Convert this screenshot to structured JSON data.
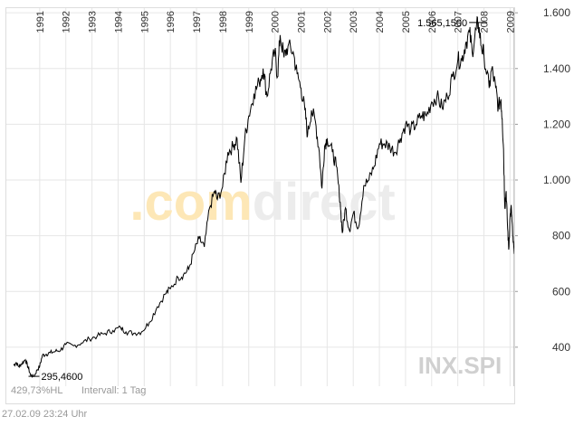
{
  "chart_data": {
    "type": "line",
    "ticker": "INX.SPI",
    "watermark": ".comdirect",
    "colors": {
      "line": "#000000",
      "grid": "#e6e6e6",
      "axis_text": "#333333",
      "watermark_orange": "#fde7b6",
      "watermark_gray": "#ececec",
      "ticker_text": "#d0d0d0",
      "footer_text": "#999999"
    },
    "grid": true,
    "x_axis": {
      "position": "top",
      "labels_rotated": true
    },
    "y_axis": {
      "position": "right",
      "ylim": [
        260,
        1620
      ],
      "ticks": [
        400,
        600,
        800,
        1000,
        1200,
        1400,
        1600
      ],
      "tick_labels": [
        "400",
        "600",
        "800",
        "1.000",
        "1.200",
        "1.400",
        "1.600"
      ]
    },
    "xlim": [
      1990.0,
      2009.16
    ],
    "year_ticks": [
      1991,
      1992,
      1993,
      1994,
      1995,
      1996,
      1997,
      1998,
      1999,
      2000,
      2001,
      2002,
      2003,
      2004,
      2005,
      2006,
      2007,
      2008,
      2009
    ],
    "year_labels": [
      "1991",
      "1992",
      "1993",
      "1994",
      "1995",
      "1996",
      "1997",
      "1998",
      "1999",
      "2000",
      "2001",
      "2002",
      "2003",
      "2004",
      "2005",
      "2006",
      "2007",
      "2008",
      "2009"
    ],
    "annotations": {
      "high_label": "1.565,1500",
      "high_x": 2007.78,
      "high_y": 1565.15,
      "low_label": "295,4600",
      "low_x": 1990.78,
      "low_y": 295.46
    },
    "stats": {
      "range_pct": "429,73%HL",
      "interval": "Intervall: 1 Tag"
    },
    "timestamp": "27.02.09   23:24 Uhr",
    "series": [
      {
        "points": [
          [
            1990.0,
            335
          ],
          [
            1990.1,
            345
          ],
          [
            1990.2,
            330
          ],
          [
            1990.3,
            340
          ],
          [
            1990.45,
            355
          ],
          [
            1990.55,
            330
          ],
          [
            1990.65,
            300
          ],
          [
            1990.78,
            295
          ],
          [
            1990.9,
            318
          ],
          [
            1991.0,
            332
          ],
          [
            1991.1,
            370
          ],
          [
            1991.25,
            375
          ],
          [
            1991.4,
            380
          ],
          [
            1991.6,
            385
          ],
          [
            1991.8,
            390
          ],
          [
            1992.0,
            410
          ],
          [
            1992.3,
            405
          ],
          [
            1992.6,
            415
          ],
          [
            1992.9,
            430
          ],
          [
            1993.2,
            440
          ],
          [
            1993.5,
            450
          ],
          [
            1993.8,
            460
          ],
          [
            1994.1,
            470
          ],
          [
            1994.3,
            455
          ],
          [
            1994.6,
            450
          ],
          [
            1994.9,
            455
          ],
          [
            1995.2,
            490
          ],
          [
            1995.5,
            545
          ],
          [
            1995.8,
            590
          ],
          [
            1996.0,
            610
          ],
          [
            1996.3,
            650
          ],
          [
            1996.5,
            660
          ],
          [
            1996.7,
            680
          ],
          [
            1996.9,
            740
          ],
          [
            1997.1,
            790
          ],
          [
            1997.3,
            760
          ],
          [
            1997.5,
            900
          ],
          [
            1997.7,
            960
          ],
          [
            1997.8,
            930
          ],
          [
            1998.0,
            975
          ],
          [
            1998.2,
            1100
          ],
          [
            1998.4,
            1120
          ],
          [
            1998.55,
            1150
          ],
          [
            1998.7,
            990
          ],
          [
            1998.85,
            1150
          ],
          [
            1999.0,
            1230
          ],
          [
            1999.2,
            1310
          ],
          [
            1999.4,
            1350
          ],
          [
            1999.55,
            1400
          ],
          [
            1999.7,
            1300
          ],
          [
            1999.85,
            1400
          ],
          [
            2000.0,
            1460
          ],
          [
            2000.1,
            1370
          ],
          [
            2000.2,
            1520
          ],
          [
            2000.35,
            1440
          ],
          [
            2000.5,
            1480
          ],
          [
            2000.7,
            1460
          ],
          [
            2000.85,
            1380
          ],
          [
            2001.0,
            1330
          ],
          [
            2001.15,
            1250
          ],
          [
            2001.25,
            1160
          ],
          [
            2001.4,
            1250
          ],
          [
            2001.55,
            1210
          ],
          [
            2001.7,
            1100
          ],
          [
            2001.8,
            970
          ],
          [
            2001.9,
            1120
          ],
          [
            2002.0,
            1150
          ],
          [
            2002.2,
            1100
          ],
          [
            2002.35,
            1050
          ],
          [
            2002.5,
            920
          ],
          [
            2002.58,
            810
          ],
          [
            2002.7,
            900
          ],
          [
            2002.85,
            820
          ],
          [
            2003.0,
            880
          ],
          [
            2003.2,
            830
          ],
          [
            2003.4,
            980
          ],
          [
            2003.6,
            1000
          ],
          [
            2003.8,
            1050
          ],
          [
            2004.0,
            1130
          ],
          [
            2004.2,
            1130
          ],
          [
            2004.4,
            1120
          ],
          [
            2004.6,
            1100
          ],
          [
            2004.8,
            1150
          ],
          [
            2005.0,
            1200
          ],
          [
            2005.2,
            1180
          ],
          [
            2005.4,
            1200
          ],
          [
            2005.6,
            1230
          ],
          [
            2005.8,
            1230
          ],
          [
            2006.0,
            1280
          ],
          [
            2006.2,
            1300
          ],
          [
            2006.4,
            1260
          ],
          [
            2006.6,
            1300
          ],
          [
            2006.8,
            1370
          ],
          [
            2007.0,
            1430
          ],
          [
            2007.15,
            1430
          ],
          [
            2007.3,
            1490
          ],
          [
            2007.45,
            1530
          ],
          [
            2007.55,
            1460
          ],
          [
            2007.7,
            1540
          ],
          [
            2007.78,
            1565
          ],
          [
            2007.9,
            1480
          ],
          [
            2008.0,
            1450
          ],
          [
            2008.2,
            1330
          ],
          [
            2008.3,
            1400
          ],
          [
            2008.45,
            1330
          ],
          [
            2008.55,
            1260
          ],
          [
            2008.65,
            1290
          ],
          [
            2008.7,
            1220
          ],
          [
            2008.75,
            1110
          ],
          [
            2008.8,
            900
          ],
          [
            2008.85,
            960
          ],
          [
            2008.9,
            840
          ],
          [
            2008.95,
            750
          ],
          [
            2009.0,
            870
          ],
          [
            2009.05,
            900
          ],
          [
            2009.1,
            800
          ],
          [
            2009.16,
            735
          ]
        ]
      }
    ]
  }
}
